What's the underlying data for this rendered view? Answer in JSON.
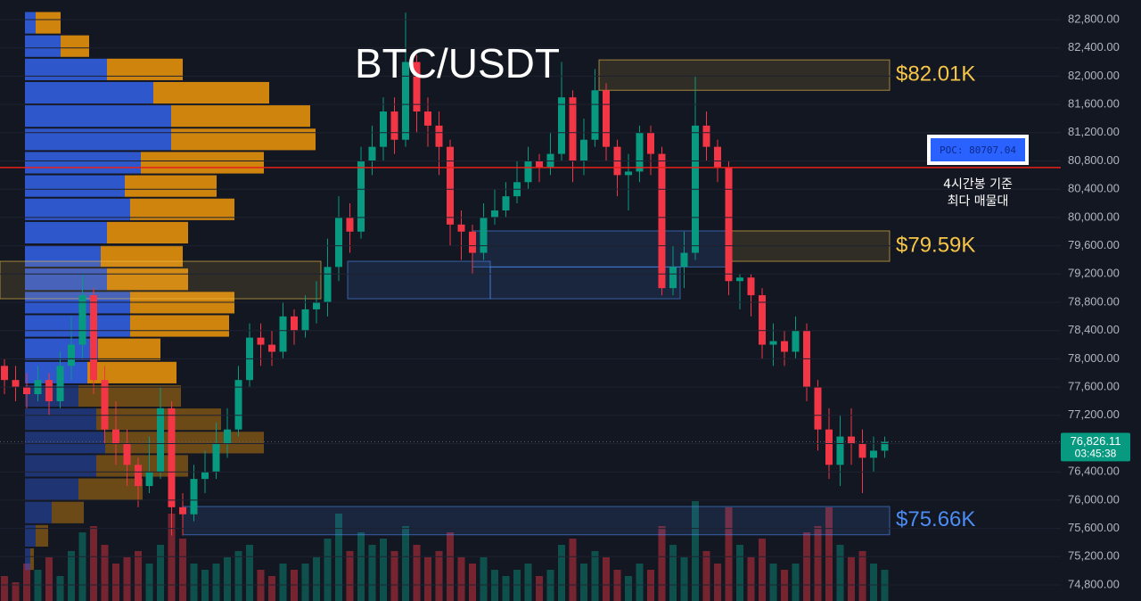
{
  "chart_data": {
    "type": "candlestick",
    "title": "BTC/USDT",
    "ylim": [
      74720,
      82980
    ],
    "yticks": [
      {
        "value": 74800,
        "label": "74,800.00"
      },
      {
        "value": 75200,
        "label": "75,200.00"
      },
      {
        "value": 75600,
        "label": "75,600.00"
      },
      {
        "value": 76000,
        "label": "76,000.00"
      },
      {
        "value": 76400,
        "label": "76,400.00"
      },
      {
        "value": 76800,
        "label": "76,800.00"
      },
      {
        "value": 77200,
        "label": "77,200.00"
      },
      {
        "value": 77600,
        "label": "77,600.00"
      },
      {
        "value": 78000,
        "label": "78,000.00"
      },
      {
        "value": 78400,
        "label": "78,400.00"
      },
      {
        "value": 78800,
        "label": "78,800.00"
      },
      {
        "value": 79200,
        "label": "79,200.00"
      },
      {
        "value": 79600,
        "label": "79,600.00"
      },
      {
        "value": 80000,
        "label": "80,000.00"
      },
      {
        "value": 80400,
        "label": "80,400.00"
      },
      {
        "value": 80800,
        "label": "80,800.00"
      },
      {
        "value": 81200,
        "label": "81,200.00"
      },
      {
        "value": 81600,
        "label": "81,600.00"
      },
      {
        "value": 82000,
        "label": "82,000.00"
      },
      {
        "value": 82400,
        "label": "82,400.00"
      },
      {
        "value": 82800,
        "label": "82,800.00"
      }
    ],
    "up_color": "#089981",
    "down_color": "#f23645",
    "open": [
      77900,
      77700,
      77600,
      77500,
      77700,
      77400,
      77900,
      78200,
      78900,
      77700,
      77000,
      76800,
      76500,
      76200,
      76400,
      77300,
      75900,
      75800,
      76300,
      76400,
      76800,
      77000,
      77700,
      78300,
      78200,
      78100,
      78600,
      78400,
      78700,
      78800,
      79300,
      80000,
      79800,
      80800,
      81000,
      81500,
      81100,
      82200,
      81500,
      81300,
      81000,
      79900,
      79800,
      79500,
      80000,
      80100,
      80300,
      80500,
      80800,
      80700,
      80900,
      81700,
      80800,
      81100,
      81800,
      81000,
      80600,
      80650,
      81200,
      80900,
      79000,
      79300,
      79500,
      81300,
      81000,
      80700,
      79100,
      79150,
      78900,
      78200,
      78250,
      78100,
      78400,
      77600,
      77000,
      76500,
      76900,
      76800,
      76600,
      76700
    ],
    "high": [
      78000,
      77900,
      77800,
      77900,
      77800,
      78100,
      78600,
      79200,
      79000,
      77900,
      77400,
      77000,
      76600,
      76900,
      77600,
      77400,
      76100,
      76500,
      76700,
      77100,
      77300,
      77900,
      78500,
      78500,
      78400,
      78800,
      78700,
      78900,
      79100,
      79700,
      80300,
      80200,
      81000,
      81300,
      81700,
      81700,
      82900,
      82300,
      81700,
      81500,
      81100,
      80100,
      79900,
      80200,
      80400,
      80500,
      80800,
      81000,
      80900,
      81200,
      82200,
      81800,
      81400,
      82100,
      81900,
      81100,
      80900,
      81300,
      81300,
      81000,
      79600,
      79800,
      82000,
      81500,
      81100,
      80800,
      79200,
      79200,
      79000,
      78500,
      78400,
      78600,
      78500,
      77700,
      77300,
      77200,
      77300,
      77000,
      76900,
      76900
    ],
    "low": [
      77500,
      77400,
      77300,
      77400,
      77200,
      77300,
      77700,
      78000,
      77500,
      76800,
      76500,
      76200,
      75900,
      76100,
      76300,
      75500,
      75500,
      75700,
      76100,
      76300,
      76600,
      76900,
      77600,
      77900,
      77900,
      78000,
      78200,
      78300,
      78500,
      78600,
      79100,
      79500,
      79700,
      80600,
      80800,
      80900,
      81000,
      81200,
      81000,
      80600,
      79600,
      79400,
      79200,
      79400,
      79900,
      80000,
      80200,
      80400,
      80500,
      80600,
      80800,
      80500,
      80600,
      81000,
      80800,
      80300,
      80100,
      80500,
      80600,
      78900,
      78900,
      79000,
      79400,
      80800,
      80500,
      78900,
      78700,
      78600,
      78000,
      77900,
      77900,
      78000,
      77400,
      76700,
      76300,
      76200,
      76500,
      76100,
      76400,
      76600
    ],
    "close": [
      77700,
      77600,
      77500,
      77700,
      77400,
      77900,
      78200,
      78900,
      77700,
      77000,
      76800,
      76500,
      76200,
      76400,
      77300,
      75900,
      75800,
      76300,
      76400,
      76800,
      77000,
      77700,
      78300,
      78200,
      78100,
      78600,
      78400,
      78700,
      78800,
      79300,
      80000,
      79800,
      80800,
      81000,
      81500,
      81100,
      82200,
      81500,
      81300,
      81000,
      79900,
      79800,
      79500,
      80000,
      80100,
      80300,
      80500,
      80800,
      80700,
      80900,
      81700,
      80800,
      81100,
      81800,
      81000,
      80600,
      80650,
      81200,
      80900,
      79000,
      79300,
      79500,
      81300,
      81000,
      80700,
      79100,
      79150,
      78900,
      78200,
      78250,
      78100,
      78400,
      77600,
      77000,
      76500,
      76900,
      76800,
      76600,
      76700,
      76826.11
    ],
    "volume": [
      20,
      15,
      30,
      25,
      35,
      20,
      40,
      55,
      60,
      45,
      30,
      35,
      40,
      30,
      45,
      70,
      50,
      30,
      25,
      30,
      35,
      40,
      45,
      25,
      20,
      30,
      25,
      30,
      35,
      50,
      70,
      40,
      55,
      45,
      50,
      40,
      60,
      45,
      35,
      40,
      55,
      35,
      30,
      35,
      25,
      20,
      25,
      30,
      20,
      25,
      45,
      50,
      30,
      40,
      35,
      25,
      20,
      30,
      25,
      60,
      45,
      35,
      80,
      40,
      30,
      75,
      45,
      35,
      50,
      30,
      25,
      30,
      55,
      60,
      75,
      45,
      35,
      40,
      30,
      25
    ],
    "vlim": [
      0,
      100
    ],
    "profile": {
      "bins": [
        75000,
        75330,
        75660,
        75990,
        76320,
        76650,
        76980,
        77310,
        77640,
        77970,
        78300,
        78630,
        78960,
        79290,
        79620,
        79950,
        80280,
        80610,
        80940,
        81270,
        81600,
        81930,
        82260,
        82590,
        82920
      ],
      "buy": [
        6,
        12,
        30,
        60,
        80,
        90,
        80,
        60,
        70,
        82,
        118,
        118,
        92,
        85,
        92,
        118,
        112,
        130,
        164,
        164,
        144,
        92,
        40,
        12
      ],
      "sell": [
        4,
        14,
        36,
        72,
        103,
        178,
        140,
        115,
        100,
        70,
        111,
        117,
        91,
        92,
        91,
        117,
        103,
        138,
        162,
        156,
        130,
        85,
        32,
        28
      ],
      "buy_color": "#2f5bd6",
      "sell_color": "#d98a0e",
      "lim": [
        0,
        330
      ]
    },
    "zones": [
      {
        "label": "$82.01K",
        "low": 81800,
        "high": 82230,
        "color": "#f7c548"
      },
      {
        "label": "$79.59K",
        "low": 79380,
        "high": 79810,
        "color": "#f7c548"
      },
      {
        "label": "$75.66K",
        "low": 75510,
        "high": 75910,
        "color": "#4c8cf5"
      },
      {
        "low": 78850,
        "high": 79380,
        "color": "#f7c548"
      },
      {
        "low": 78850,
        "high": 79380,
        "color": "#4c8cf5"
      },
      {
        "low": 79300,
        "high": 79810,
        "color": "#4c8cf5"
      },
      {
        "low": 78850,
        "high": 79300,
        "color": "#4c8cf5"
      }
    ],
    "poc": {
      "value": 80707.04,
      "label": "POC: 80707.04",
      "color": "#e8201a"
    },
    "annotation": [
      "4시간봉 기준",
      "최다 매물대"
    ],
    "last": {
      "value": 76826.11,
      "label": "76,826.11",
      "countdown": "03:45:38"
    }
  }
}
